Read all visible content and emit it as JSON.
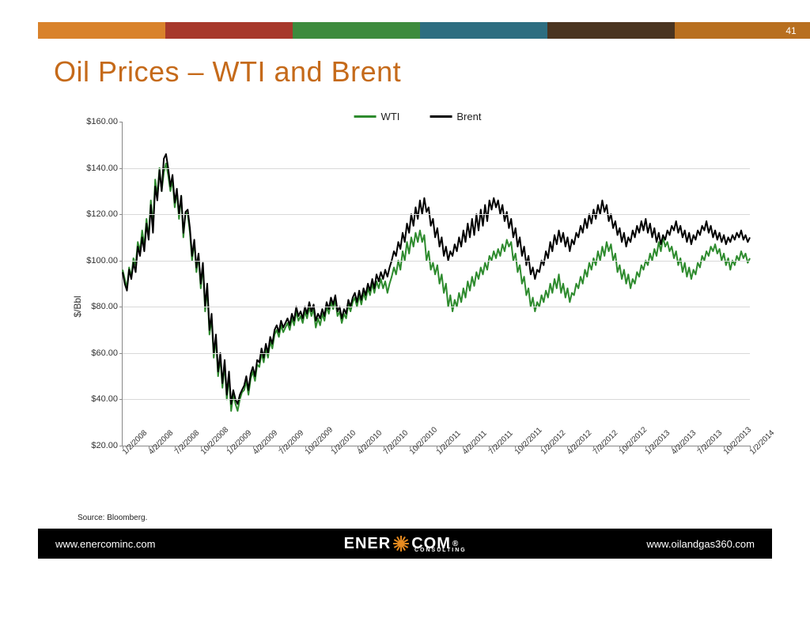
{
  "page_number": "41",
  "header_stripe": {
    "segments": [
      {
        "color": "#d9822b",
        "width_pct": 16.5
      },
      {
        "color": "#a7382b",
        "width_pct": 16.5
      },
      {
        "color": "#3d8b3d",
        "width_pct": 16.5
      },
      {
        "color": "#2d6d80",
        "width_pct": 16.5
      },
      {
        "color": "#4a3420",
        "width_pct": 16.5
      },
      {
        "color": "#b86f1f",
        "width_pct": 17.5
      }
    ],
    "page_num_bg": "#b86f1f"
  },
  "title": {
    "text": "Oil Prices – WTI and Brent",
    "color": "#c56a1a",
    "fontsize": 36
  },
  "chart": {
    "type": "line",
    "ylabel": "$/Bbl",
    "ylim": [
      20,
      160
    ],
    "ytick_step": 20,
    "ytick_prefix": "$",
    "ytick_decimals": 2,
    "grid_color": "#d9d9d9",
    "axis_color": "#888888",
    "background_color": "#ffffff",
    "tick_fontsize": 11,
    "x_labels": [
      "1/2/2008",
      "4/2/2008",
      "7/2/2008",
      "10/2/2008",
      "1/2/2009",
      "4/2/2009",
      "7/2/2009",
      "10/2/2009",
      "1/2/2010",
      "4/2/2010",
      "7/2/2010",
      "10/2/2010",
      "1/2/2011",
      "4/2/2011",
      "7/2/2011",
      "10/2/2011",
      "1/2/2012",
      "4/2/2012",
      "7/2/2012",
      "10/2/2012",
      "1/2/2013",
      "4/2/2013",
      "7/2/2013",
      "10/2/2013",
      "1/2/2014"
    ],
    "series": [
      {
        "name": "WTI",
        "color": "#2e8b2e",
        "line_width": 2,
        "values": [
          96,
          92,
          88,
          97,
          93,
          101,
          98,
          108,
          104,
          113,
          106,
          118,
          110,
          126,
          115,
          135,
          128,
          140,
          130,
          138,
          142,
          137,
          130,
          135,
          123,
          130,
          118,
          128,
          110,
          121,
          120,
          112,
          100,
          108,
          95,
          102,
          88,
          98,
          78,
          88,
          68,
          75,
          58,
          66,
          50,
          58,
          45,
          55,
          40,
          50,
          35,
          42,
          38,
          35,
          40,
          43,
          44,
          48,
          42,
          49,
          52,
          48,
          55,
          54,
          60,
          56,
          62,
          58,
          65,
          62,
          68,
          70,
          67,
          72,
          69,
          71,
          73,
          70,
          75,
          72,
          78,
          74,
          76,
          73,
          78,
          75,
          80,
          76,
          79,
          71,
          75,
          72,
          77,
          74,
          80,
          77,
          82,
          79,
          83,
          76,
          78,
          73,
          77,
          75,
          81,
          78,
          82,
          84,
          80,
          85,
          81,
          86,
          83,
          88,
          85,
          90,
          86,
          91,
          88,
          92,
          88,
          91,
          86,
          90,
          93,
          97,
          94,
          100,
          96,
          104,
          100,
          108,
          103,
          110,
          106,
          112,
          108,
          113,
          108,
          111,
          100,
          104,
          96,
          99,
          94,
          98,
          90,
          94,
          86,
          90,
          80,
          85,
          78,
          83,
          80,
          86,
          82,
          88,
          84,
          91,
          87,
          93,
          89,
          95,
          92,
          97,
          94,
          99,
          96,
          102,
          100,
          104,
          101,
          105,
          102,
          107,
          104,
          109,
          106,
          108,
          100,
          103,
          95,
          98,
          90,
          93,
          85,
          88,
          80,
          84,
          78,
          82,
          80,
          85,
          82,
          87,
          84,
          90,
          86,
          92,
          88,
          94,
          86,
          90,
          84,
          88,
          82,
          86,
          85,
          90,
          88,
          93,
          90,
          96,
          93,
          99,
          96,
          101,
          98,
          104,
          100,
          106,
          102,
          108,
          104,
          107,
          100,
          103,
          95,
          98,
          92,
          96,
          90,
          94,
          88,
          92,
          90,
          95,
          93,
          98,
          96,
          100,
          98,
          103,
          100,
          105,
          102,
          108,
          104,
          110,
          106,
          108,
          104,
          106,
          101,
          104,
          98,
          101,
          95,
          99,
          93,
          97,
          92,
          96,
          94,
          99,
          97,
          102,
          100,
          104,
          102,
          106,
          104,
          107,
          103,
          105,
          100,
          103,
          98,
          101,
          96,
          100,
          98,
          102,
          100,
          104,
          101,
          103,
          99,
          101
        ]
      },
      {
        "name": "Brent",
        "color": "#000000",
        "line_width": 2,
        "values": [
          95,
          90,
          87,
          96,
          92,
          99,
          95,
          106,
          102,
          110,
          104,
          116,
          109,
          124,
          112,
          132,
          126,
          139,
          130,
          144,
          146,
          140,
          132,
          137,
          125,
          131,
          120,
          128,
          112,
          121,
          122,
          114,
          102,
          109,
          97,
          103,
          90,
          99,
          80,
          90,
          70,
          77,
          60,
          68,
          52,
          60,
          47,
          57,
          42,
          52,
          38,
          44,
          40,
          38,
          42,
          44,
          46,
          50,
          44,
          51,
          54,
          50,
          57,
          56,
          62,
          58,
          64,
          60,
          67,
          64,
          70,
          72,
          69,
          74,
          71,
          73,
          75,
          72,
          77,
          74,
          80,
          76,
          78,
          75,
          80,
          77,
          82,
          78,
          81,
          74,
          77,
          75,
          79,
          76,
          82,
          79,
          84,
          81,
          85,
          78,
          80,
          75,
          79,
          77,
          83,
          80,
          84,
          86,
          82,
          87,
          83,
          88,
          85,
          90,
          87,
          92,
          88,
          94,
          91,
          95,
          92,
          96,
          93,
          97,
          100,
          104,
          102,
          108,
          105,
          112,
          108,
          116,
          112,
          120,
          115,
          123,
          118,
          126,
          120,
          127,
          121,
          123,
          115,
          118,
          110,
          114,
          106,
          110,
          102,
          106,
          100,
          104,
          102,
          107,
          104,
          110,
          106,
          113,
          108,
          116,
          110,
          118,
          111,
          120,
          113,
          122,
          115,
          124,
          117,
          126,
          122,
          127,
          123,
          126,
          120,
          124,
          117,
          121,
          114,
          118,
          110,
          114,
          106,
          110,
          102,
          106,
          98,
          102,
          94,
          97,
          92,
          96,
          95,
          100,
          98,
          104,
          101,
          108,
          104,
          111,
          107,
          113,
          108,
          112,
          106,
          110,
          104,
          109,
          107,
          112,
          110,
          115,
          112,
          118,
          114,
          120,
          116,
          122,
          118,
          124,
          120,
          126,
          121,
          124,
          117,
          120,
          114,
          117,
          111,
          114,
          108,
          112,
          106,
          110,
          108,
          113,
          110,
          115,
          112,
          117,
          113,
          118,
          112,
          116,
          110,
          114,
          108,
          112,
          107,
          111,
          109,
          113,
          111,
          115,
          113,
          117,
          112,
          115,
          110,
          113,
          108,
          112,
          107,
          111,
          109,
          113,
          111,
          115,
          113,
          117,
          112,
          115,
          110,
          113,
          109,
          112,
          108,
          111,
          107,
          110,
          108,
          111,
          109,
          112,
          110,
          113,
          109,
          111,
          108,
          110
        ]
      }
    ],
    "legend": {
      "position": "top-center",
      "items": [
        {
          "label": "WTI",
          "color": "#2e8b2e"
        },
        {
          "label": "Brent",
          "color": "#000000"
        }
      ]
    }
  },
  "source": "Source: Bloomberg.",
  "footer": {
    "bg": "#000000",
    "left": "www.enercominc.com",
    "right": "www.oilandgas360.com",
    "logo": {
      "pre": "ENER",
      "post": "COM",
      "sub": "CONSULTING",
      "sun_color": "#e68a1f",
      "reg": "®"
    }
  }
}
